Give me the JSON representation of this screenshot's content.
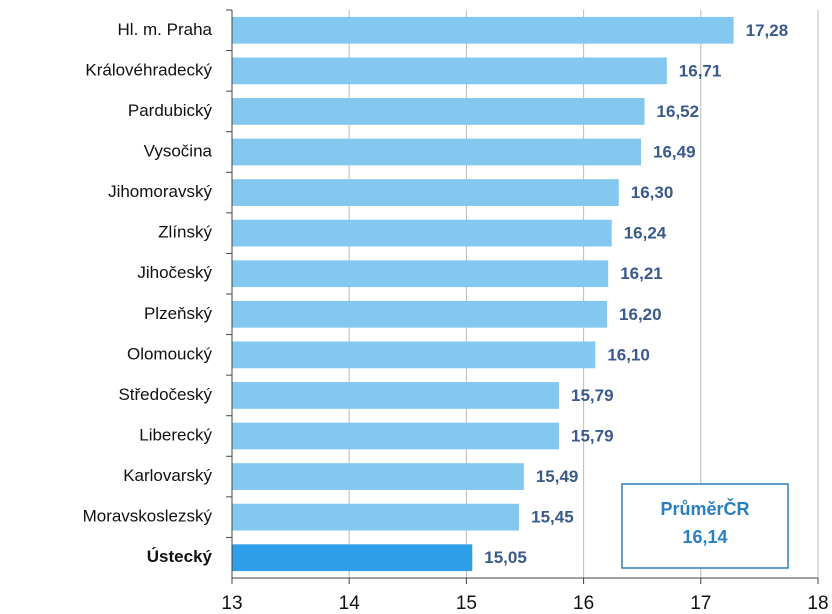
{
  "chart_data": {
    "type": "barh",
    "categories": [
      "Hl. m. Praha",
      "Královéhradecký",
      "Pardubický",
      "Vysočina",
      "Jihomoravský",
      "Zlínský",
      "Jihočeský",
      "Plzeňský",
      "Olomoucký",
      "Středočeský",
      "Liberecký",
      "Karlovarský",
      "Moravskoslezský",
      "Ústecký"
    ],
    "values": [
      17.28,
      16.71,
      16.52,
      16.49,
      16.3,
      16.24,
      16.21,
      16.2,
      16.1,
      15.79,
      15.79,
      15.49,
      15.45,
      15.05
    ],
    "value_labels": [
      "17,28",
      "16,71",
      "16,52",
      "16,49",
      "16,30",
      "16,24",
      "16,21",
      "16,20",
      "16,10",
      "15,79",
      "15,79",
      "15,49",
      "15,45",
      "15,05"
    ],
    "color": "#84c8f0",
    "highlight": {
      "index": 13,
      "color": "#2f9fea"
    },
    "xlim": [
      13,
      18
    ],
    "xticks": [
      13,
      14,
      15,
      16,
      17,
      18
    ],
    "grid": true,
    "annotation": [
      "PrůměrČR",
      "16,14"
    ]
  }
}
